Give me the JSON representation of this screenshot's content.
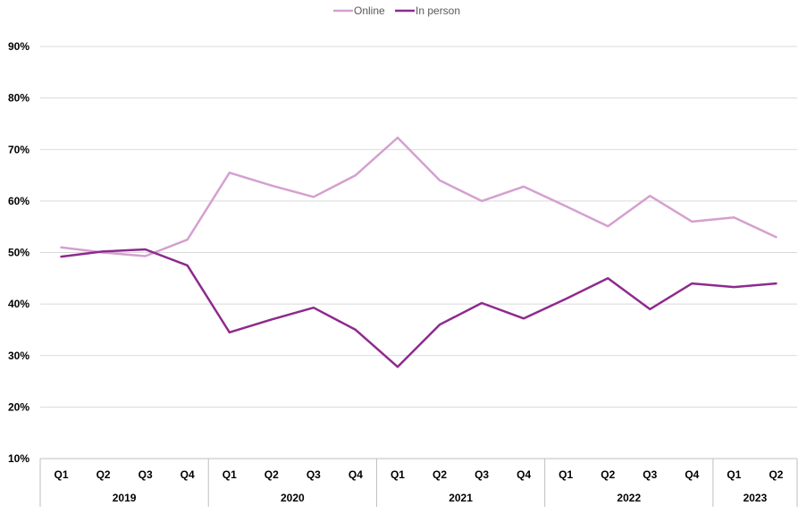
{
  "chart_data": {
    "type": "line",
    "title": "",
    "xlabel": "",
    "ylabel": "",
    "ylim": [
      0.1,
      0.9
    ],
    "y_ticks": [
      "10%",
      "20%",
      "30%",
      "40%",
      "50%",
      "60%",
      "70%",
      "80%",
      "90%"
    ],
    "grid": "horizontal",
    "legend_position": "top-center",
    "categories": [
      "Q1",
      "Q2",
      "Q3",
      "Q4",
      "Q1",
      "Q2",
      "Q3",
      "Q4",
      "Q1",
      "Q2",
      "Q3",
      "Q4",
      "Q1",
      "Q2",
      "Q3",
      "Q4",
      "Q1",
      "Q2"
    ],
    "year_groups": [
      {
        "label": "2019",
        "count": 4
      },
      {
        "label": "2020",
        "count": 4
      },
      {
        "label": "2021",
        "count": 4
      },
      {
        "label": "2022",
        "count": 4
      },
      {
        "label": "2023",
        "count": 2
      }
    ],
    "series": [
      {
        "name": "Online",
        "color": "#D4A0D0",
        "values": [
          0.51,
          0.5,
          0.493,
          0.525,
          0.655,
          0.63,
          0.608,
          0.65,
          0.723,
          0.64,
          0.6,
          0.628,
          0.59,
          0.551,
          0.61,
          0.56,
          0.568,
          0.53
        ]
      },
      {
        "name": "In person",
        "color": "#8E2A8E",
        "values": [
          0.492,
          0.502,
          0.506,
          0.475,
          0.345,
          0.37,
          0.393,
          0.35,
          0.278,
          0.36,
          0.402,
          0.372,
          0.41,
          0.45,
          0.39,
          0.44,
          0.433,
          0.44
        ]
      }
    ]
  }
}
